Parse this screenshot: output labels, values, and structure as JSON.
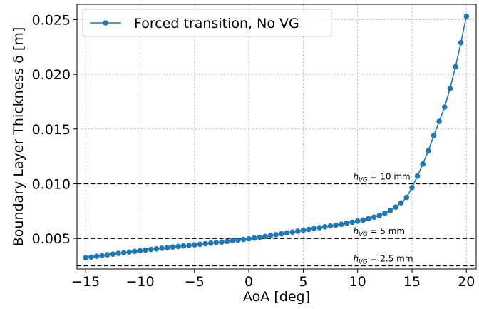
{
  "chart_data": {
    "type": "line",
    "xlabel": "AoA [deg]",
    "ylabel": "Boundary Layer Thickness δ [m]",
    "xlim": [
      -15.8,
      20.9
    ],
    "ylim": [
      0.0022,
      0.0264
    ],
    "xticks": [
      -15,
      -10,
      -5,
      0,
      5,
      10,
      15,
      20
    ],
    "xtick_labels": [
      "−15",
      "−10",
      "−5",
      "0",
      "5",
      "10",
      "15",
      "20"
    ],
    "yticks": [
      0.005,
      0.01,
      0.015,
      0.02,
      0.025
    ],
    "ytick_labels": [
      "0.005",
      "0.010",
      "0.015",
      "0.020",
      "0.025"
    ],
    "grid": true,
    "legend_position": "top-left",
    "series": [
      {
        "name": "Forced transition, No VG",
        "color": "#1f77b4",
        "marker": "circle",
        "x": [
          -15,
          -14.5,
          -14,
          -13.5,
          -13,
          -12.5,
          -12,
          -11.5,
          -11,
          -10.5,
          -10,
          -9.5,
          -9,
          -8.5,
          -8,
          -7.5,
          -7,
          -6.5,
          -6,
          -5.5,
          -5,
          -4.5,
          -4,
          -3.5,
          -3,
          -2.5,
          -2,
          -1.5,
          -1,
          -0.5,
          0,
          0.5,
          1,
          1.5,
          2,
          2.5,
          3,
          3.5,
          4,
          4.5,
          5,
          5.5,
          6,
          6.5,
          7,
          7.5,
          8,
          8.5,
          9,
          9.5,
          10,
          10.5,
          11,
          11.5,
          12,
          12.5,
          13,
          13.5,
          14,
          14.5,
          15,
          15.5,
          16,
          16.5,
          17,
          17.5,
          18,
          18.5,
          19,
          19.5,
          20
        ],
        "y": [
          0.00322,
          0.00329,
          0.00336,
          0.00343,
          0.0035,
          0.00356,
          0.00363,
          0.00369,
          0.00375,
          0.00381,
          0.00387,
          0.00393,
          0.00399,
          0.00404,
          0.0041,
          0.00415,
          0.00421,
          0.00426,
          0.00431,
          0.00436,
          0.00441,
          0.00446,
          0.00451,
          0.00456,
          0.00462,
          0.00467,
          0.00473,
          0.00478,
          0.00484,
          0.0049,
          0.00496,
          0.00503,
          0.0051,
          0.00518,
          0.00526,
          0.00534,
          0.00542,
          0.0055,
          0.00558,
          0.00566,
          0.00574,
          0.00582,
          0.0059,
          0.00598,
          0.00606,
          0.00614,
          0.00622,
          0.0063,
          0.00639,
          0.00648,
          0.00658,
          0.00668,
          0.0068,
          0.00694,
          0.0071,
          0.0073,
          0.00755,
          0.00786,
          0.00825,
          0.00875,
          0.00965,
          0.0107,
          0.0118,
          0.013,
          0.0144,
          0.0157,
          0.017,
          0.0187,
          0.0207,
          0.0229,
          0.0253
        ]
      }
    ],
    "hlines": [
      {
        "y": 0.01,
        "label_h": "h",
        "label_sub": "VG",
        "label_rest": " = 10 mm",
        "label_x": 9.6,
        "label_y": 0.0104
      },
      {
        "y": 0.005,
        "label_h": "h",
        "label_sub": "VG",
        "label_rest": " = 5 mm",
        "label_x": 9.6,
        "label_y": 0.0054
      },
      {
        "y": 0.0025,
        "label_h": "h",
        "label_sub": "VG",
        "label_rest": " = 2.5 mm",
        "label_x": 9.6,
        "label_y": 0.0029
      }
    ]
  }
}
